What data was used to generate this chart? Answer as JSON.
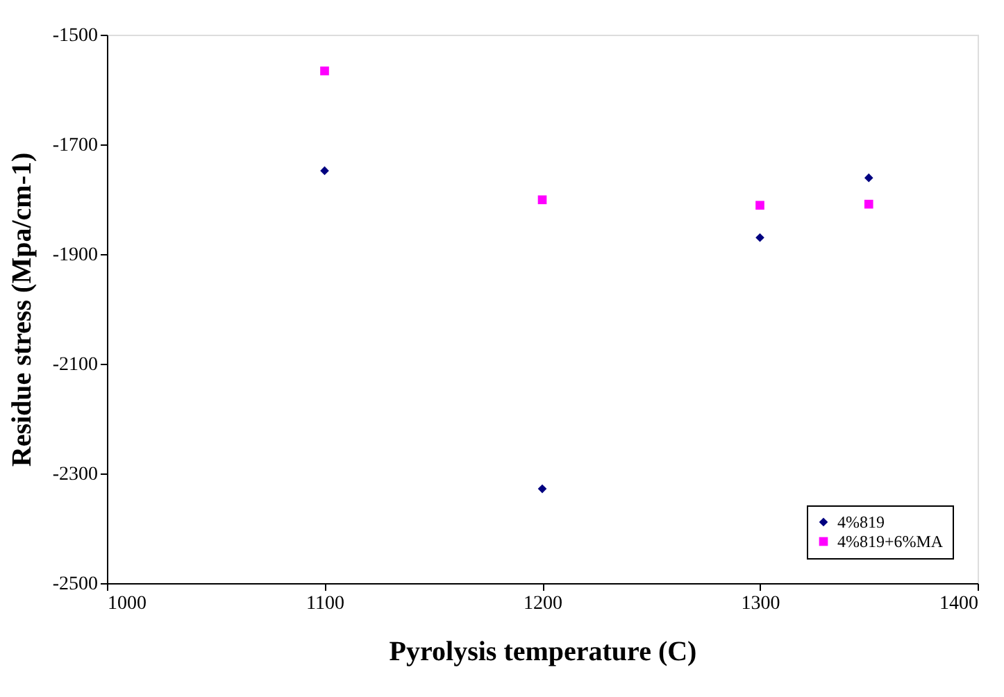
{
  "chart_data": {
    "type": "scatter",
    "xlabel": "Pyrolysis temperature (C)",
    "ylabel": "Residue stress (Mpa/cm-1)",
    "x": [
      1100,
      1200,
      1300,
      1350
    ],
    "series": [
      {
        "name": "4%819",
        "color": "#000080",
        "marker": "diamond",
        "values": [
          -1748,
          -2328,
          -1870,
          -1761
        ]
      },
      {
        "name": "4%819+6%MA",
        "color": "#ff00ff",
        "marker": "square",
        "values": [
          -1566,
          -1801,
          -1811,
          -1809
        ]
      }
    ],
    "xlim": [
      1000,
      1400
    ],
    "xticks": [
      1000,
      1100,
      1200,
      1300,
      1400
    ],
    "ylim": [
      -2500,
      -1500
    ],
    "yticks": [
      -2500,
      -2300,
      -2100,
      -1900,
      -1700,
      -1500
    ],
    "grid": false,
    "legend": "bottom right"
  }
}
